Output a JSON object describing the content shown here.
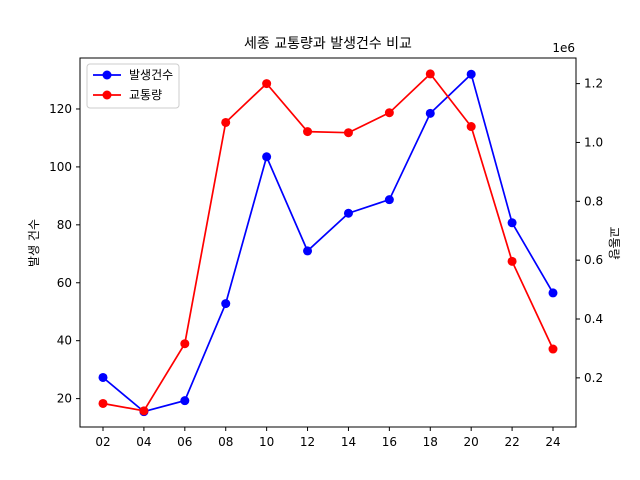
{
  "chart_data": {
    "type": "line",
    "title": "세종 교통량과 발생건수 비교",
    "categories": [
      "02",
      "04",
      "06",
      "08",
      "10",
      "12",
      "14",
      "16",
      "18",
      "20",
      "22",
      "24"
    ],
    "y_left": {
      "label": "발생 건수",
      "lim": [
        10.2,
        137.6
      ],
      "ticks": [
        20,
        40,
        60,
        80,
        100,
        120
      ]
    },
    "y_right": {
      "label": "교통량",
      "lim": [
        0.033,
        1.287
      ],
      "offset_label": "1e6",
      "ticks": [
        0.2,
        0.4,
        0.6,
        0.8,
        1.0,
        1.2
      ]
    },
    "series": [
      {
        "name": "발생건수",
        "axis": "left",
        "color": "#0000ff",
        "values": [
          27.3,
          15.5,
          19.3,
          52.8,
          103.5,
          71.0,
          84.0,
          88.7,
          118.5,
          132.0,
          80.7,
          56.5
        ]
      },
      {
        "name": "교통량",
        "axis": "right",
        "color": "#ff0000",
        "values": [
          0.113,
          0.088,
          0.316,
          1.068,
          1.2,
          1.037,
          1.033,
          1.101,
          1.233,
          1.054,
          0.596,
          0.298
        ]
      }
    ],
    "legend": {
      "placement": "top-left"
    },
    "grid": false
  }
}
